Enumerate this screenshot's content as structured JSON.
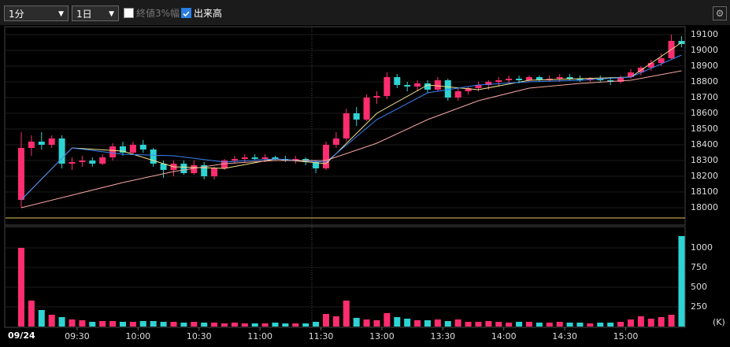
{
  "controls": {
    "interval": "1分",
    "range": "1日",
    "option_close_range": "終値3%幅",
    "option_close_range_checked": false,
    "option_volume": "出来高",
    "option_volume_checked": true
  },
  "chart_data": [
    {
      "type": "candlestick",
      "date_label": "09/24",
      "x": [
        0,
        1,
        2,
        3,
        4,
        5,
        6,
        7,
        8,
        9,
        10,
        11,
        12,
        13,
        14,
        15,
        16,
        17,
        18,
        19,
        20,
        21,
        22,
        23,
        24,
        25,
        26,
        27,
        28,
        29,
        30,
        31,
        32,
        33,
        34,
        35,
        36,
        37,
        38,
        39,
        40,
        41,
        42,
        43,
        44,
        45,
        46,
        47,
        48,
        49,
        50,
        51,
        52,
        53,
        54,
        55,
        56,
        57,
        58,
        59,
        60,
        61,
        62,
        63,
        64,
        65
      ],
      "open": [
        18050,
        18380,
        18420,
        18400,
        18440,
        18280,
        18290,
        18300,
        18280,
        18320,
        18390,
        18350,
        18400,
        18370,
        18280,
        18240,
        18280,
        18220,
        18270,
        18200,
        18250,
        18300,
        18310,
        18320,
        18310,
        18320,
        18310,
        18300,
        18310,
        18290,
        18250,
        18400,
        18440,
        18600,
        18560,
        18700,
        18710,
        18830,
        18780,
        18770,
        18790,
        18750,
        18810,
        18700,
        18740,
        18760,
        18780,
        18800,
        18810,
        18820,
        18810,
        18830,
        18810,
        18820,
        18830,
        18820,
        18810,
        18820,
        18810,
        18800,
        18830,
        18860,
        18890,
        18920,
        18950,
        19060
      ],
      "high": [
        18480,
        18460,
        18480,
        18460,
        18460,
        18320,
        18330,
        18320,
        18340,
        18410,
        18420,
        18420,
        18430,
        18380,
        18300,
        18300,
        18300,
        18300,
        18290,
        18260,
        18310,
        18330,
        18340,
        18340,
        18340,
        18330,
        18330,
        18330,
        18320,
        18300,
        18420,
        18480,
        18630,
        18640,
        18720,
        18740,
        18860,
        18850,
        18800,
        18810,
        18810,
        18830,
        18820,
        18760,
        18770,
        18800,
        18810,
        18830,
        18840,
        18840,
        18840,
        18840,
        18840,
        18850,
        18850,
        18840,
        18830,
        18840,
        18830,
        18840,
        18880,
        18900,
        18940,
        18980,
        19100,
        19090
      ],
      "low": [
        18000,
        18330,
        18370,
        18380,
        18250,
        18240,
        18260,
        18260,
        18270,
        18300,
        18330,
        18340,
        18350,
        18260,
        18190,
        18200,
        18210,
        18210,
        18180,
        18180,
        18240,
        18280,
        18290,
        18300,
        18290,
        18300,
        18290,
        18280,
        18270,
        18220,
        18240,
        18380,
        18420,
        18520,
        18550,
        18660,
        18690,
        18760,
        18740,
        18740,
        18730,
        18740,
        18680,
        18680,
        18720,
        18740,
        18750,
        18770,
        18790,
        18790,
        18800,
        18800,
        18800,
        18800,
        18810,
        18800,
        18800,
        18800,
        18780,
        18790,
        18820,
        18840,
        18870,
        18900,
        18940,
        19020
      ],
      "close": [
        18380,
        18420,
        18400,
        18440,
        18280,
        18290,
        18300,
        18280,
        18320,
        18390,
        18350,
        18400,
        18370,
        18280,
        18240,
        18280,
        18220,
        18270,
        18200,
        18250,
        18300,
        18310,
        18320,
        18310,
        18320,
        18310,
        18300,
        18310,
        18290,
        18250,
        18400,
        18440,
        18600,
        18560,
        18700,
        18710,
        18830,
        18780,
        18770,
        18790,
        18750,
        18810,
        18700,
        18740,
        18760,
        18780,
        18800,
        18810,
        18820,
        18810,
        18830,
        18810,
        18820,
        18830,
        18820,
        18810,
        18820,
        18810,
        18800,
        18830,
        18860,
        18890,
        18920,
        18950,
        19060,
        19040
      ],
      "up_color": "#ff2d6f",
      "down_color": "#2ed3d3",
      "overlays": [
        {
          "color": "#f0e68c",
          "x": [
            0,
            5,
            10,
            15,
            20,
            25,
            30,
            35,
            40,
            45,
            50,
            55,
            60,
            65
          ],
          "values": [
            18050,
            18380,
            18360,
            18260,
            18250,
            18310,
            18280,
            18600,
            18780,
            18750,
            18810,
            18820,
            18830,
            19050
          ]
        },
        {
          "color": "#3b82f6",
          "x": [
            0,
            5,
            10,
            15,
            20,
            25,
            30,
            35,
            40,
            45,
            50,
            55,
            60,
            65
          ],
          "values": [
            18050,
            18380,
            18340,
            18330,
            18290,
            18310,
            18290,
            18560,
            18730,
            18780,
            18800,
            18810,
            18830,
            18970
          ]
        },
        {
          "color": "#f4a6a0",
          "x": [
            0,
            5,
            10,
            15,
            20,
            25,
            30,
            35,
            40,
            45,
            50,
            55,
            60,
            65
          ],
          "values": [
            18000,
            18080,
            18160,
            18230,
            18280,
            18300,
            18300,
            18410,
            18560,
            18680,
            18760,
            18790,
            18810,
            18870
          ]
        }
      ],
      "ref_value": 17935,
      "ref_color": "#e6c65a",
      "xlim": [
        -1.55,
        65.35
      ],
      "xticks": [
        {
          "value": 5.5,
          "label": "09:30"
        },
        {
          "value": 11.5,
          "label": "10:00"
        },
        {
          "value": 17.5,
          "label": "10:30"
        },
        {
          "value": 23.5,
          "label": "11:00"
        },
        {
          "value": 29.5,
          "label": "11:30"
        },
        {
          "value": 35.5,
          "label": "13:00"
        },
        {
          "value": 41.5,
          "label": "13:30"
        },
        {
          "value": 47.5,
          "label": "14:00"
        },
        {
          "value": 53.5,
          "label": "14:30"
        },
        {
          "value": 59.5,
          "label": "15:00"
        }
      ],
      "ylim": [
        17895,
        19145
      ],
      "yticks": [
        18000,
        18100,
        18200,
        18300,
        18400,
        18500,
        18600,
        18700,
        18800,
        18900,
        19000,
        19100
      ]
    },
    {
      "type": "bar",
      "unit_label": "(K)",
      "x": [
        0,
        1,
        2,
        3,
        4,
        5,
        6,
        7,
        8,
        9,
        10,
        11,
        12,
        13,
        14,
        15,
        16,
        17,
        18,
        19,
        20,
        21,
        22,
        23,
        24,
        25,
        26,
        27,
        28,
        29,
        30,
        31,
        32,
        33,
        34,
        35,
        36,
        37,
        38,
        39,
        40,
        41,
        42,
        43,
        44,
        45,
        46,
        47,
        48,
        49,
        50,
        51,
        52,
        53,
        54,
        55,
        56,
        57,
        58,
        59,
        60,
        61,
        62,
        63,
        64,
        65
      ],
      "values": [
        1000,
        330,
        210,
        150,
        120,
        90,
        80,
        60,
        70,
        70,
        60,
        60,
        70,
        70,
        60,
        60,
        50,
        60,
        50,
        50,
        40,
        50,
        40,
        40,
        40,
        50,
        40,
        40,
        40,
        60,
        160,
        130,
        330,
        110,
        90,
        80,
        170,
        120,
        100,
        80,
        80,
        90,
        70,
        90,
        60,
        60,
        70,
        60,
        50,
        60,
        60,
        50,
        50,
        60,
        50,
        50,
        40,
        50,
        50,
        60,
        90,
        130,
        100,
        120,
        150,
        1150
      ],
      "ylim": [
        0,
        1250
      ],
      "yticks": [
        250,
        500,
        750,
        1000
      ]
    }
  ]
}
